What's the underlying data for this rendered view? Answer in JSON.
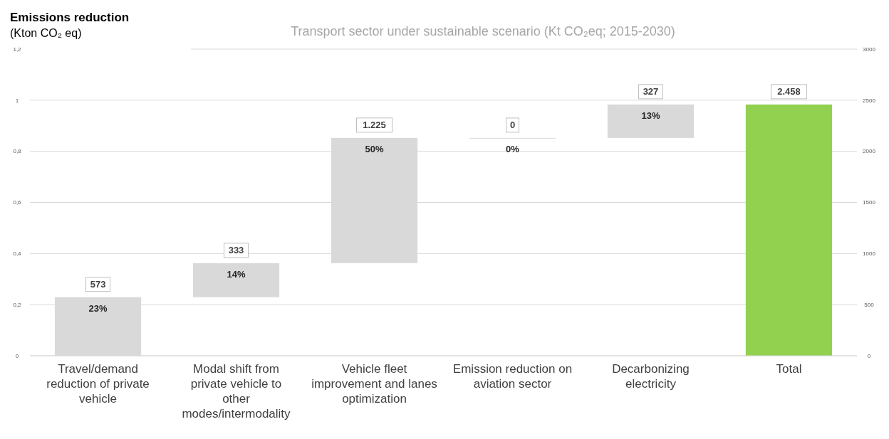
{
  "chart_data": {
    "type": "bar",
    "title": "Transport sector under sustainable scenario (Kt CO₂eq; 2015-2030)",
    "ylabel": "Emissions reduction\n(Kton CO₂ eq)",
    "categories": [
      "Travel/demand reduction of private vehicle",
      "Modal shift from private vehicle to other modes/intermodality",
      "Vehicle fleet improvement and lanes optimization",
      "Emission reduction on aviation sector",
      "Decarbonizing electricity",
      "Total"
    ],
    "series": [
      {
        "axis": "y2",
        "values": [
          573,
          333,
          1225,
          0,
          327,
          2458
        ],
        "base": [
          0,
          573,
          906,
          2131,
          2131,
          0
        ],
        "value_labels": [
          "573",
          "333",
          "1.225",
          "0",
          "327",
          "2.458"
        ]
      }
    ],
    "colors": [
      "#d9d9d9",
      "#d9d9d9",
      "#d9d9d9",
      "#d9d9d9",
      "#d9d9d9",
      "#92d050"
    ],
    "annotations": [
      "23%",
      "14%",
      "50%",
      "0%",
      "13%"
    ],
    "ylim": [
      0,
      1.2
    ],
    "yticks": [
      0,
      {
        "value": 0.2,
        "label": "0,2"
      },
      {
        "value": 0.4,
        "label": "0,4"
      },
      {
        "value": 0.6,
        "label": "0,6"
      },
      {
        "value": 0.8,
        "label": "0,8"
      },
      1,
      {
        "value": 1.2,
        "label": "1,2"
      }
    ],
    "y2lim": [
      0,
      3000
    ],
    "y2ticks": [
      0,
      500,
      1000,
      1500,
      2000,
      2500,
      3000
    ],
    "grid": "y"
  }
}
